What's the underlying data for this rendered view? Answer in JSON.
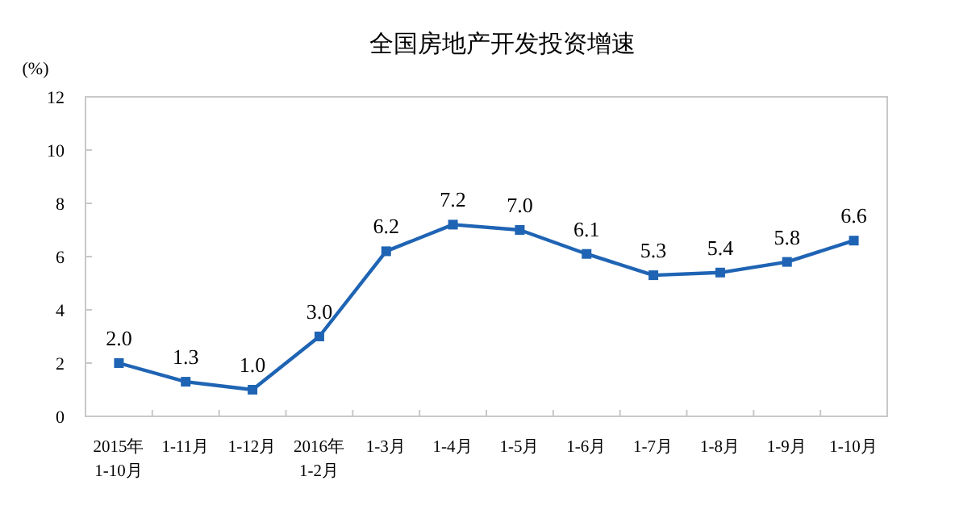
{
  "chart_data": {
    "type": "line",
    "title": "全国房地产开发投资增速",
    "ylabel": "(%)",
    "categories": [
      "2015年\n1-10月",
      "1-11月",
      "1-12月",
      "2016年\n1-2月",
      "1-3月",
      "1-4月",
      "1-5月",
      "1-6月",
      "1-7月",
      "1-8月",
      "1-9月",
      "1-10月"
    ],
    "series": [
      {
        "color": "#1f64b4",
        "values": [
          2.0,
          1.3,
          1.0,
          3.0,
          6.2,
          7.2,
          7.0,
          6.1,
          5.3,
          5.4,
          5.8,
          6.6
        ]
      }
    ],
    "value_labels": [
      "2.0",
      "1.3",
      "1.0",
      "3.0",
      "6.2",
      "7.2",
      "7.0",
      "6.1",
      "5.3",
      "5.4",
      "5.8",
      "6.6"
    ],
    "ylim": [
      0,
      12
    ],
    "yticks": [
      0,
      2,
      4,
      6,
      8,
      10,
      12
    ],
    "marker": "square",
    "line_style": "solid",
    "grid": false
  }
}
